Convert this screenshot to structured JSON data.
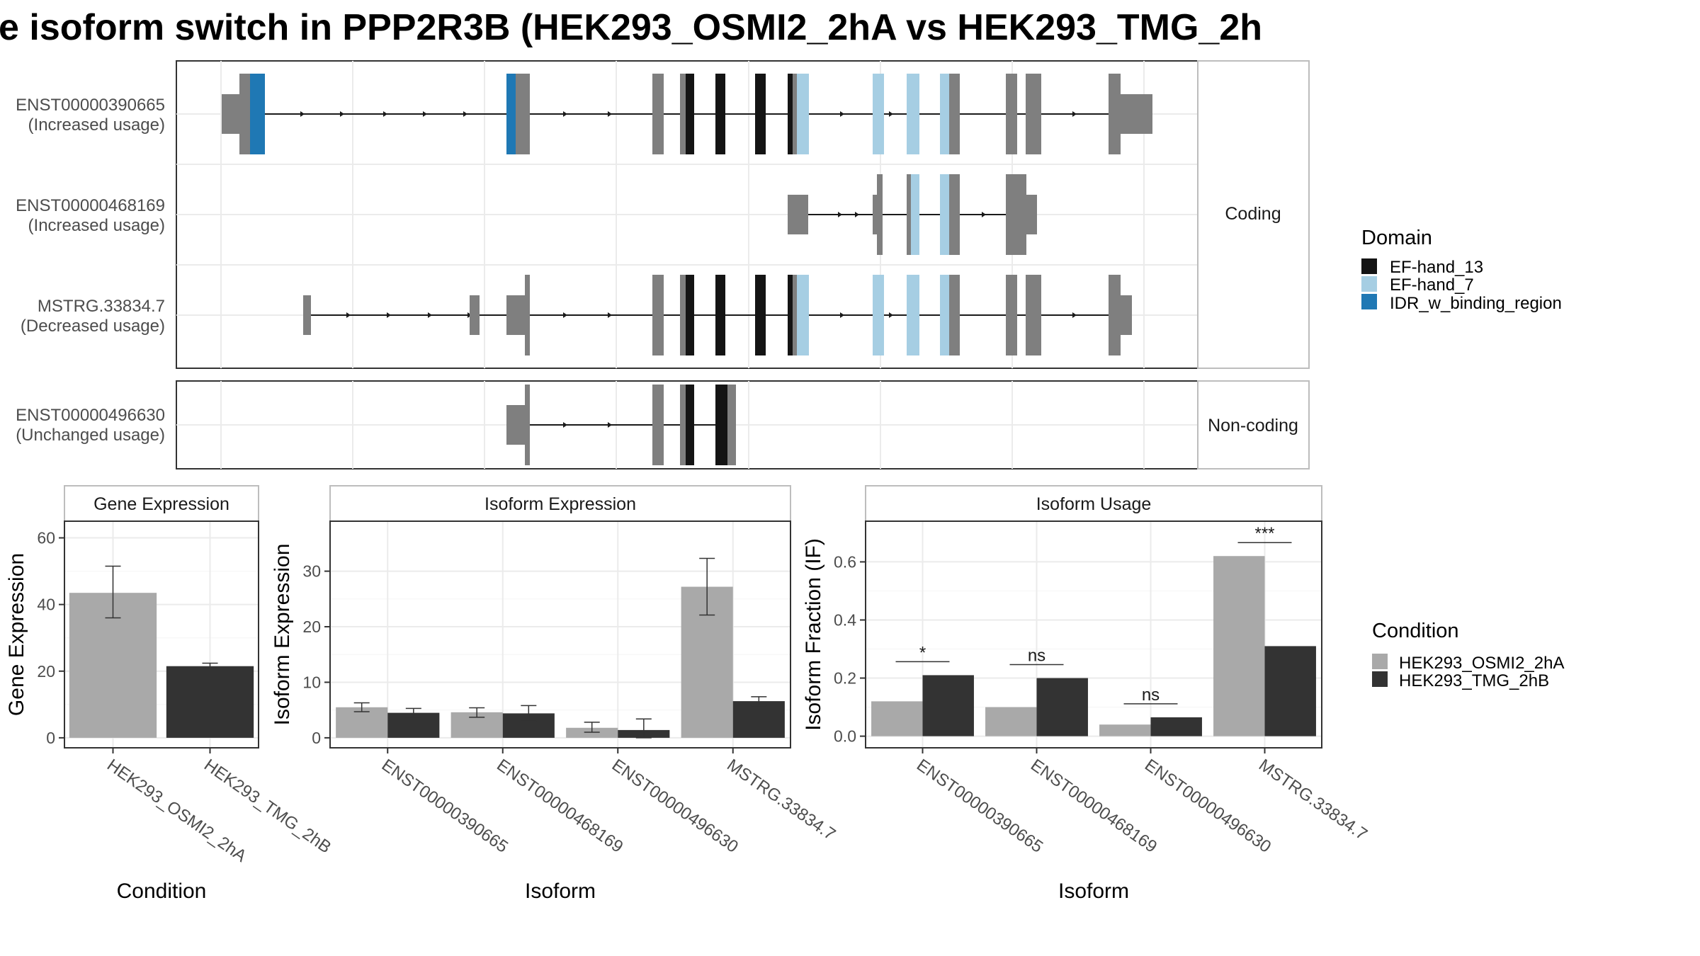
{
  "title": "e isoform switch in PPP2R3B (HEK293_OSMI2_2hA vs HEK293_TMG_2h",
  "colors": {
    "intron_line": "#1a1a1a",
    "exon_grey": "#7f7f7f",
    "ef_hand_13": "#141414",
    "ef_hand_7": "#a6cee3",
    "idr": "#1f78b4",
    "cond_a": "#a9a9a9",
    "cond_b": "#333333",
    "panel_border": "#333333",
    "strip_border": "#bdbdbd",
    "grid_major": "#ebebeb"
  },
  "transcript_panel": {
    "facets": [
      {
        "label": "Coding",
        "tracks": [
          {
            "name": "ENST00000390665",
            "usage": "(Increased usage)"
          },
          {
            "name": "ENST00000468169",
            "usage": "(Increased usage)"
          },
          {
            "name": "MSTRG.33834.7",
            "usage": "(Decreased usage)"
          }
        ]
      },
      {
        "label": "Non-coding",
        "tracks": [
          {
            "name": "ENST00000496630",
            "usage": "(Unchanged usage)"
          }
        ]
      }
    ],
    "legend": {
      "title": "Domain",
      "items": [
        {
          "label": "EF-hand_13",
          "color": "#141414"
        },
        {
          "label": "EF-hand_7",
          "color": "#a6cee3"
        },
        {
          "label": "IDR_w_binding_region",
          "color": "#1f78b4"
        }
      ]
    }
  },
  "chart_data": [
    {
      "type": "bar",
      "title": "Gene Expression",
      "xlabel": "Condition",
      "ylabel": "Gene Expression",
      "categories": [
        "HEK293_OSMI2_2hA",
        "HEK293_TMG_2hB"
      ],
      "values": [
        43.5,
        21.5
      ],
      "errors": [
        [
          36,
          51.5
        ],
        [
          20.8,
          22.4
        ]
      ],
      "ylim": [
        -3,
        65
      ],
      "yticks": [
        0,
        20,
        40,
        60
      ]
    },
    {
      "type": "bar",
      "title": "Isoform Expression",
      "xlabel": "Isoform",
      "ylabel": "Isoform Expression",
      "categories": [
        "ENST00000390665",
        "ENST00000468169",
        "ENST00000496630",
        "MSTRG.33834.7"
      ],
      "series": [
        {
          "name": "HEK293_OSMI2_2hA",
          "values": [
            5.5,
            4.6,
            1.8,
            27.2
          ],
          "errors": [
            [
              4.7,
              6.3
            ],
            [
              3.7,
              5.4
            ],
            [
              1.0,
              2.8
            ],
            [
              22.1,
              32.3
            ]
          ]
        },
        {
          "name": "HEK293_TMG_2hB",
          "values": [
            4.5,
            4.4,
            1.4,
            6.6
          ],
          "errors": [
            [
              3.7,
              5.3
            ],
            [
              3.0,
              5.8
            ],
            [
              0,
              3.4
            ],
            [
              5.8,
              7.4
            ]
          ]
        }
      ],
      "ylim": [
        -1.8,
        39
      ],
      "yticks": [
        0,
        10,
        20,
        30
      ]
    },
    {
      "type": "bar",
      "title": "Isoform Usage",
      "xlabel": "Isoform",
      "ylabel": "Isoform Fraction (IF)",
      "categories": [
        "ENST00000390665",
        "ENST00000468169",
        "ENST00000496630",
        "MSTRG.33834.7"
      ],
      "series": [
        {
          "name": "HEK293_OSMI2_2hA",
          "values": [
            0.12,
            0.1,
            0.04,
            0.62
          ]
        },
        {
          "name": "HEK293_TMG_2hB",
          "values": [
            0.21,
            0.2,
            0.065,
            0.31
          ]
        }
      ],
      "significance": [
        "*",
        "ns",
        "ns",
        "***"
      ],
      "ylim": [
        -0.04,
        0.74
      ],
      "yticks": [
        0.0,
        0.2,
        0.4,
        0.6
      ],
      "yticklabels": [
        "0.0",
        "0.2",
        "0.4",
        "0.6"
      ]
    }
  ],
  "condition_legend": {
    "title": "Condition",
    "items": [
      {
        "label": "HEK293_OSMI2_2hA",
        "color": "#a9a9a9"
      },
      {
        "label": "HEK293_TMG_2hB",
        "color": "#333333"
      }
    ]
  }
}
